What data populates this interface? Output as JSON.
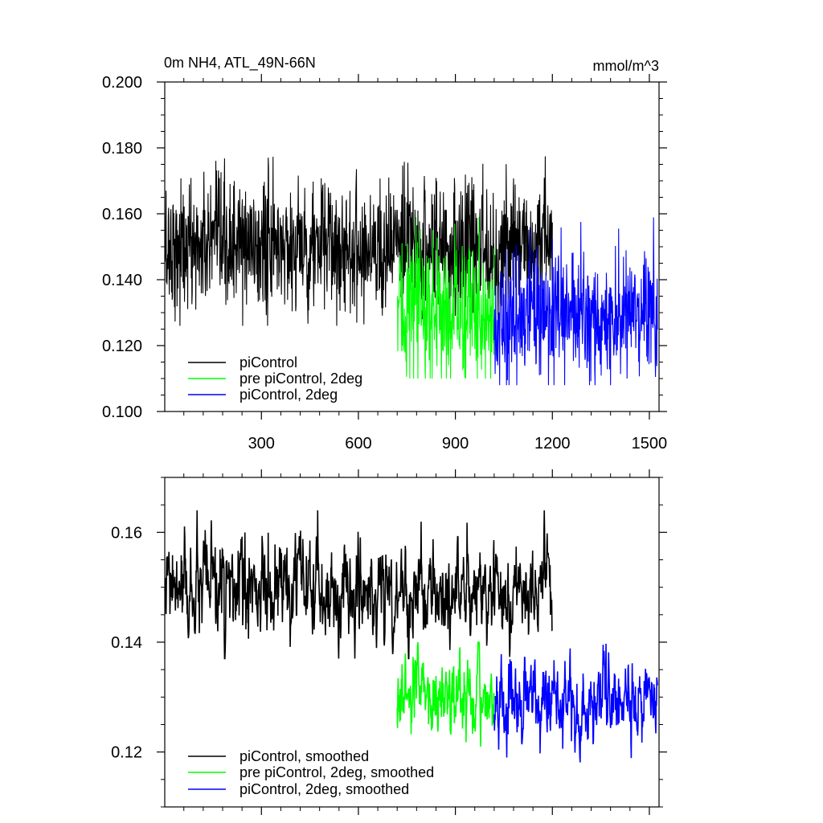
{
  "chart_data": [
    {
      "type": "line",
      "title": "0m NH4, ATL_49N-66N",
      "units": "mmol/m^3",
      "xlim": [
        1,
        1530
      ],
      "ylim": [
        0.1,
        0.2
      ],
      "x_ticks": [
        300,
        600,
        900,
        1200,
        1500
      ],
      "x_tick_labels": [
        "300",
        "600",
        "900",
        "1200",
        "1500"
      ],
      "y_ticks": [
        0.1,
        0.12,
        0.14,
        0.16,
        0.18,
        0.2
      ],
      "y_tick_labels": [
        "0.100",
        "0.120",
        "0.140",
        "0.160",
        "0.180",
        "0.200"
      ],
      "legend_position": "bottom-left",
      "grid": false,
      "series": [
        {
          "name": "piControl",
          "color": "#000000",
          "x_start": 1,
          "x_end": 1200,
          "mean": 0.15,
          "noise": 0.01,
          "spike_max": 0.187,
          "min": 0.126
        },
        {
          "name": "pre piControl, 2deg",
          "color": "#00ff00",
          "x_start": 720,
          "x_end": 1020,
          "mean": 0.131,
          "noise": 0.011,
          "spike_max": 0.159,
          "min": 0.11
        },
        {
          "name": "piControl, 2deg",
          "color": "#0000ff",
          "x_start": 1020,
          "x_end": 1525,
          "mean": 0.129,
          "noise": 0.01,
          "spike_max": 0.17,
          "min": 0.108
        }
      ]
    },
    {
      "type": "line",
      "xlim": [
        1,
        1530
      ],
      "ylim": [
        0.11,
        0.17
      ],
      "x_ticks": [
        300,
        600,
        900,
        1200,
        1500
      ],
      "y_ticks": [
        0.12,
        0.14,
        0.16
      ],
      "y_tick_labels": [
        "0.12",
        "0.14",
        "0.16"
      ],
      "legend_position": "bottom-left",
      "grid": false,
      "series": [
        {
          "name": "piControl, smoothed",
          "color": "#000000",
          "x_start": 1,
          "x_end": 1200,
          "mean": 0.149,
          "noise": 0.0045,
          "spike_max": 0.164,
          "min": 0.137
        },
        {
          "name": "pre piControl, 2deg, smoothed",
          "color": "#00ff00",
          "x_start": 720,
          "x_end": 1020,
          "mean": 0.13,
          "noise": 0.0035,
          "spike_max": 0.14,
          "min": 0.121
        },
        {
          "name": "piControl, 2deg, smoothed",
          "color": "#0000ff",
          "x_start": 1020,
          "x_end": 1525,
          "mean": 0.129,
          "noise": 0.004,
          "spike_max": 0.141,
          "min": 0.115
        }
      ]
    }
  ]
}
